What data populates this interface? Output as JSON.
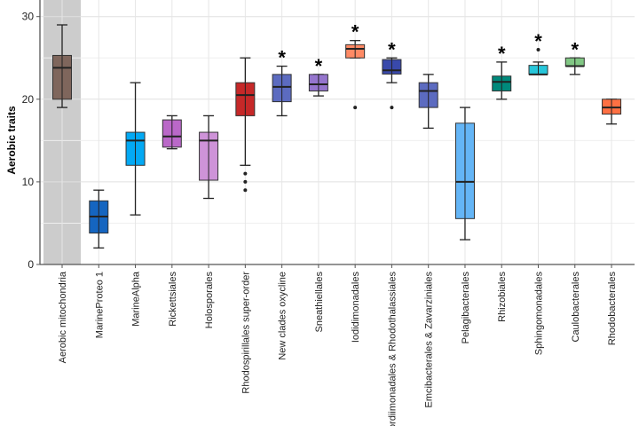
{
  "chart_data": {
    "type": "boxplot",
    "title": "",
    "xlabel": "",
    "ylabel": "Aerobic traits",
    "ylim": [
      0,
      30
    ],
    "yticks": [
      0,
      10,
      20,
      30
    ],
    "grid": true,
    "highlighted_category": "Aerobic mitochondria",
    "highlight_color": "#cccccc",
    "significance_marker": "*",
    "categories": [
      {
        "label": "Aerobic mitochondria",
        "min": 19,
        "q1": 20,
        "median": 23.8,
        "q3": 25.3,
        "max": 29,
        "outliers": [],
        "star": false,
        "color": "#7f665c"
      },
      {
        "label": "MarineProteo 1",
        "min": 2,
        "q1": 3.8,
        "median": 5.8,
        "q3": 7.7,
        "max": 9,
        "outliers": [],
        "star": false,
        "color": "#1565c0"
      },
      {
        "label": "MarineAlpha",
        "min": 6,
        "q1": 12,
        "median": 15,
        "q3": 16,
        "max": 22,
        "outliers": [],
        "star": false,
        "color": "#03a9f4"
      },
      {
        "label": "Rickettsiales",
        "min": 14,
        "q1": 14.2,
        "median": 15.5,
        "q3": 17.5,
        "max": 18,
        "outliers": [],
        "star": false,
        "color": "#ba68c8"
      },
      {
        "label": "Holosporales",
        "min": 8,
        "q1": 10.2,
        "median": 15,
        "q3": 16,
        "max": 18,
        "outliers": [],
        "star": false,
        "color": "#ce93d8"
      },
      {
        "label": "Rhodospirillales super-order",
        "min": 12,
        "q1": 18,
        "median": 20.5,
        "q3": 22,
        "max": 25,
        "outliers": [
          11,
          10,
          9
        ],
        "star": false,
        "color": "#c62828"
      },
      {
        "label": "New clades oxycline",
        "min": 18,
        "q1": 19.7,
        "median": 21.5,
        "q3": 23,
        "max": 24,
        "outliers": [],
        "star": true,
        "color": "#5c6bc0"
      },
      {
        "label": "Sneathiellales",
        "min": 20.4,
        "q1": 21,
        "median": 21.8,
        "q3": 23,
        "max": 23,
        "outliers": [],
        "star": true,
        "color": "#9575cd"
      },
      {
        "label": "Iodidimonadales",
        "min": 25,
        "q1": 25,
        "median": 26.1,
        "q3": 26.6,
        "max": 27.1,
        "outliers": [
          19
        ],
        "star": true,
        "color": "#ff8a65"
      },
      {
        "label": "Kordiimonadales & Rhodothalassiales",
        "min": 22,
        "q1": 23.05,
        "median": 23.5,
        "q3": 24.8,
        "max": 25,
        "outliers": [
          19
        ],
        "star": true,
        "color": "#3949ab"
      },
      {
        "label": "Emcibacterales & Zavarziniales",
        "min": 16.5,
        "q1": 19,
        "median": 21,
        "q3": 22,
        "max": 23,
        "outliers": [],
        "star": false,
        "color": "#5c6bc0"
      },
      {
        "label": "Pelagibacterales",
        "min": 3,
        "q1": 5.55,
        "median": 10,
        "q3": 17.1,
        "max": 19,
        "outliers": [],
        "star": false,
        "color": "#64b5f6"
      },
      {
        "label": "Rhizobiales",
        "min": 20,
        "q1": 21,
        "median": 22.1,
        "q3": 22.8,
        "max": 24.5,
        "outliers": [],
        "star": true,
        "color": "#00897b"
      },
      {
        "label": "Sphingomonadales",
        "min": 23,
        "q1": 23,
        "median": 23,
        "q3": 24.1,
        "max": 24.5,
        "outliers": [
          26
        ],
        "star": true,
        "color": "#26c6da"
      },
      {
        "label": "Caulobacterales",
        "min": 23,
        "q1": 24,
        "median": 24,
        "q3": 25,
        "max": 25,
        "outliers": [],
        "star": true,
        "color": "#81c784"
      },
      {
        "label": "Rhodobacterales",
        "min": 17,
        "q1": 18.2,
        "median": 19,
        "q3": 20,
        "max": 20,
        "outliers": [],
        "star": false,
        "color": "#ff7043"
      }
    ]
  }
}
